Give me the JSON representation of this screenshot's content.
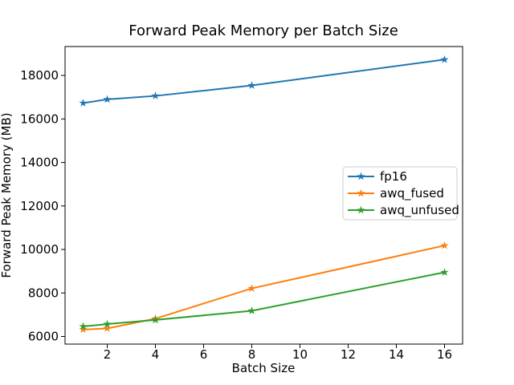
{
  "figure": {
    "background": "#ffffff",
    "spine_color": "#000000",
    "legend_border_color": "#cccccc"
  },
  "chart_data": {
    "type": "line",
    "title": "Forward Peak Memory per Batch Size",
    "xlabel": "Batch Size",
    "ylabel": "Forward Peak Memory (MB)",
    "x": [
      1,
      2,
      4,
      8,
      16
    ],
    "series": [
      {
        "name": "fp16",
        "color": "#1f77b4",
        "marker": "star",
        "values": [
          16730,
          16900,
          17060,
          17540,
          18730
        ]
      },
      {
        "name": "awq_fused",
        "color": "#ff7f0e",
        "marker": "star",
        "values": [
          6320,
          6370,
          6820,
          8210,
          10180
        ]
      },
      {
        "name": "awq_unfused",
        "color": "#2ca02c",
        "marker": "star",
        "values": [
          6460,
          6570,
          6760,
          7180,
          8950
        ]
      }
    ],
    "xticks": [
      2,
      4,
      6,
      8,
      10,
      12,
      14,
      16
    ],
    "yticks": [
      6000,
      8000,
      10000,
      12000,
      14000,
      16000,
      18000
    ],
    "xlim": [
      0.25,
      16.75
    ],
    "ylim": [
      5650,
      19330
    ],
    "grid": false,
    "legend": {
      "position": "center-right",
      "entries": [
        "fp16",
        "awq_fused",
        "awq_unfused"
      ]
    }
  }
}
